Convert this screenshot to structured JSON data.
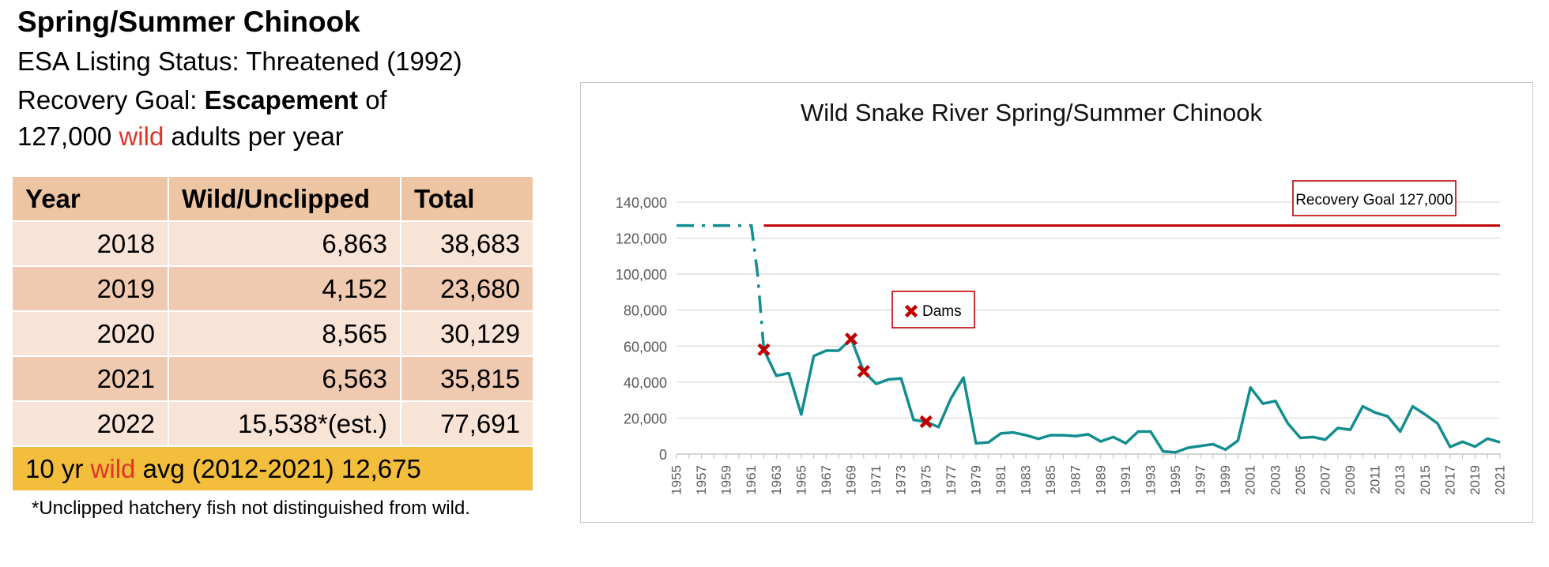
{
  "header": {
    "title": "Spring/Summer Chinook",
    "status_line": "ESA Listing Status: Threatened (1992)",
    "goal_prefix": "Recovery Goal: ",
    "goal_bold": "Escapement",
    "goal_suffix": " of",
    "goal_number": "127,000 ",
    "goal_wild": "wild",
    "goal_end": " adults per year"
  },
  "table": {
    "headers": [
      "Year",
      "Wild/Unclipped",
      "Total"
    ],
    "rows": [
      [
        "2018",
        "6,863",
        "38,683"
      ],
      [
        "2019",
        "4,152",
        "23,680"
      ],
      [
        "2020",
        "8,565",
        "30,129"
      ],
      [
        "2021",
        "6,563",
        "35,815"
      ],
      [
        "2022",
        "15,538*(est.)",
        "77,691"
      ]
    ],
    "avg_prefix": "10 yr ",
    "avg_wild": "wild",
    "avg_suffix": " avg (2012-2021) 12,675"
  },
  "footnote": "*Unclipped hatchery fish not distinguished from wild.",
  "colors": {
    "series": "#138d90",
    "goal": "#c00000",
    "dam_marker": "#c00000",
    "wild_text": "#e0342a",
    "table_header": "#edc5a3",
    "avg_row": "#f3be3c"
  },
  "chart_data": {
    "type": "line",
    "title": "Wild Snake River Spring/Summer Chinook",
    "ylim": [
      0,
      140000
    ],
    "yticks": [
      0,
      20000,
      40000,
      60000,
      80000,
      100000,
      120000,
      140000
    ],
    "ytick_labels": [
      "0",
      "20,000",
      "40,000",
      "60,000",
      "80,000",
      "100,000",
      "120,000",
      "140,000"
    ],
    "xlim": [
      1955,
      2021
    ],
    "xticks": [
      1955,
      1957,
      1959,
      1961,
      1963,
      1965,
      1967,
      1969,
      1971,
      1973,
      1975,
      1977,
      1979,
      1981,
      1983,
      1985,
      1987,
      1989,
      1991,
      1993,
      1995,
      1997,
      1999,
      2001,
      2003,
      2005,
      2007,
      2009,
      2011,
      2013,
      2015,
      2017,
      2019,
      2021
    ],
    "grid": true,
    "legend_label": "Dams",
    "goal_label": "Recovery Goal 127,000",
    "goal_value": 127000,
    "pre_dam_estimate": {
      "x": [
        1955,
        1961,
        1961.5,
        1962
      ],
      "y": [
        127000,
        127000,
        100000,
        58000
      ]
    },
    "series": [
      {
        "x": [
          1962,
          1963,
          1964,
          1965,
          1966,
          1967,
          1968,
          1969,
          1970,
          1971,
          1972,
          1973,
          1974,
          1975,
          1976,
          1977,
          1978,
          1979,
          1980,
          1981,
          1982,
          1983,
          1984,
          1985,
          1986,
          1987,
          1988,
          1989,
          1990,
          1991,
          1992,
          1993,
          1994,
          1995,
          1996,
          1997,
          1998,
          1999,
          2000,
          2001,
          2002,
          2003,
          2004,
          2005,
          2006,
          2007,
          2008,
          2009,
          2010,
          2011,
          2012,
          2013,
          2014,
          2015,
          2016,
          2017,
          2018,
          2019,
          2020,
          2021
        ],
        "y": [
          58000,
          43500,
          45000,
          22000,
          54500,
          57500,
          57500,
          64000,
          46000,
          39000,
          41500,
          42000,
          19000,
          18000,
          15000,
          31000,
          42500,
          6000,
          6500,
          11500,
          12000,
          10500,
          8500,
          10500,
          10500,
          10000,
          11000,
          7000,
          9500,
          6000,
          12500,
          12500,
          1500,
          1000,
          3500,
          4500,
          5500,
          2500,
          7500,
          37000,
          28000,
          29500,
          17000,
          9000,
          9500,
          8000,
          14500,
          13500,
          26500,
          23000,
          21000,
          12500,
          26500,
          22000,
          17000,
          4000,
          6863,
          4152,
          8565,
          6563
        ]
      }
    ],
    "dams": [
      {
        "year": 1962,
        "value": 58000
      },
      {
        "year": 1969,
        "value": 64000
      },
      {
        "year": 1970,
        "value": 46000
      },
      {
        "year": 1975,
        "value": 18000
      }
    ]
  }
}
